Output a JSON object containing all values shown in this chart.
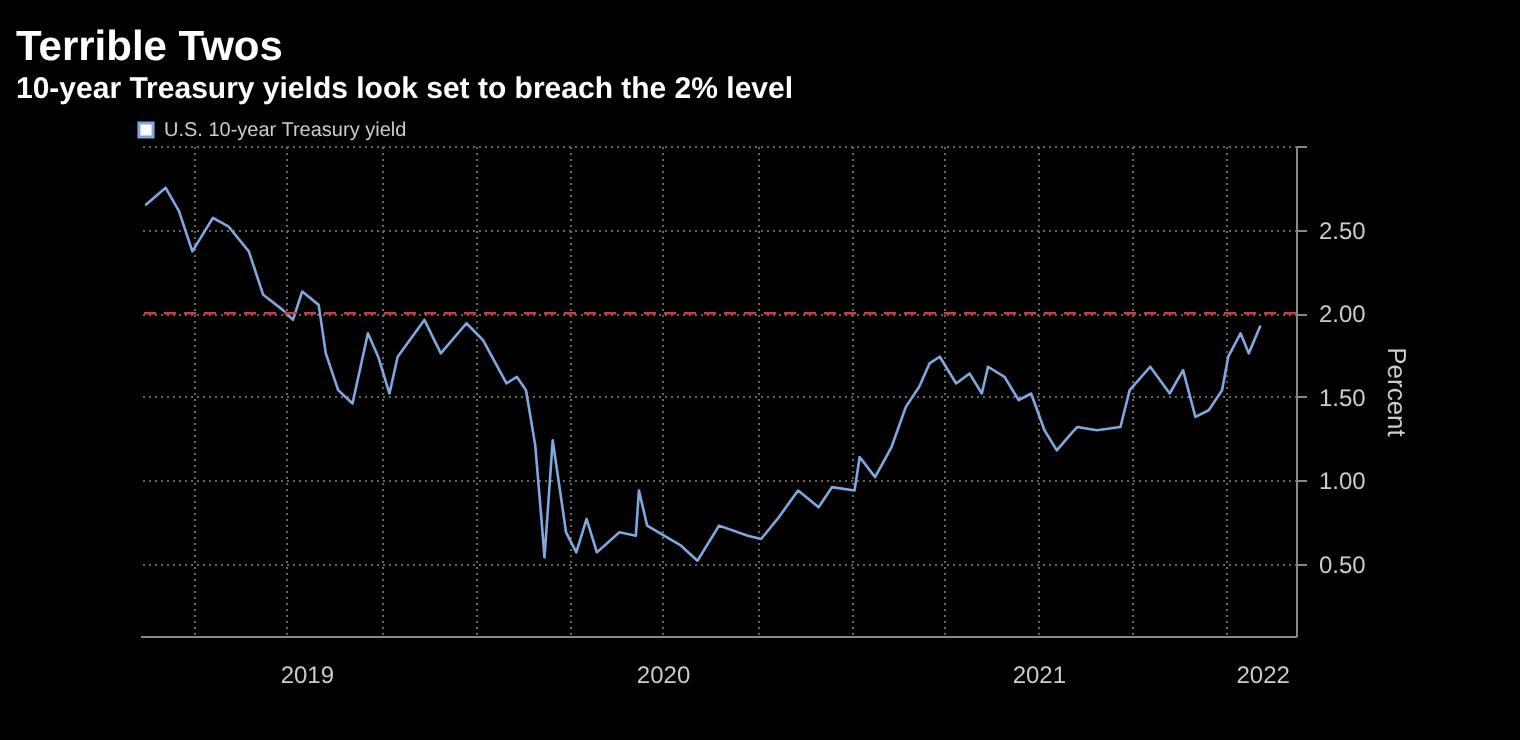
{
  "chart_data": {
    "type": "line",
    "title": "Terrible Twos",
    "subtitle": "10-year Treasury yields look set to breach the 2% level",
    "ylabel": "Percent",
    "x": [
      "2019-02-14",
      "2019-03-05",
      "2019-03-18",
      "2019-03-31",
      "2019-04-20",
      "2019-05-05",
      "2019-05-25",
      "2019-06-08",
      "2019-06-27",
      "2019-07-07",
      "2019-07-16",
      "2019-08-01",
      "2019-08-08",
      "2019-08-20",
      "2019-09-03",
      "2019-09-18",
      "2019-09-28",
      "2019-10-09",
      "2019-10-17",
      "2019-11-12",
      "2019-11-28",
      "2019-12-23",
      "2020-01-08",
      "2020-01-31",
      "2020-02-10",
      "2020-02-19",
      "2020-02-28",
      "2020-03-05",
      "2020-03-08",
      "2020-03-16",
      "2020-03-29",
      "2020-04-08",
      "2020-04-18",
      "2020-04-28",
      "2020-05-20",
      "2020-06-05",
      "2020-06-08",
      "2020-06-16",
      "2020-07-19",
      "2020-08-04",
      "2020-08-25",
      "2020-09-22",
      "2020-10-05",
      "2020-10-21",
      "2020-11-10",
      "2020-11-30",
      "2020-12-13",
      "2021-01-04",
      "2021-01-09",
      "2021-01-24",
      "2021-02-09",
      "2021-02-23",
      "2021-03-08",
      "2021-03-18",
      "2021-03-28",
      "2021-04-13",
      "2021-04-26",
      "2021-05-08",
      "2021-05-14",
      "2021-05-30",
      "2021-06-13",
      "2021-06-25",
      "2021-07-08",
      "2021-07-20",
      "2021-08-03",
      "2021-08-09",
      "2021-08-28",
      "2021-09-20",
      "2021-09-29",
      "2021-10-19",
      "2021-11-07",
      "2021-11-20",
      "2021-12-02",
      "2021-12-15",
      "2021-12-28",
      "2022-01-03",
      "2022-01-15",
      "2022-01-23",
      "2022-02-03"
    ],
    "series": [
      {
        "name": "U.S. 10-year Treasury yield",
        "color": "#7fa8e0",
        "values": [
          2.65,
          2.75,
          2.61,
          2.37,
          2.57,
          2.52,
          2.37,
          2.11,
          2.02,
          1.96,
          2.13,
          2.05,
          1.76,
          1.54,
          1.46,
          1.88,
          1.74,
          1.52,
          1.74,
          1.96,
          1.76,
          1.94,
          1.84,
          1.58,
          1.62,
          1.54,
          1.21,
          0.77,
          0.54,
          1.24,
          0.69,
          0.57,
          0.77,
          0.57,
          0.69,
          0.67,
          0.94,
          0.73,
          0.61,
          0.52,
          0.73,
          0.67,
          0.65,
          0.77,
          0.94,
          0.84,
          0.96,
          0.94,
          1.14,
          1.02,
          1.2,
          1.44,
          1.56,
          1.7,
          1.74,
          1.58,
          1.64,
          1.52,
          1.68,
          1.62,
          1.48,
          1.52,
          1.3,
          1.18,
          1.28,
          1.32,
          1.3,
          1.32,
          1.54,
          1.68,
          1.52,
          1.66,
          1.38,
          1.42,
          1.54,
          1.74,
          1.88,
          1.76,
          1.92
        ]
      }
    ],
    "xlim": [
      "2019-02-08",
      "2022-03-10"
    ],
    "xticks": [
      {
        "value": "2019-04-01",
        "label": null
      },
      {
        "value": "2019-07-01",
        "label": null
      },
      {
        "value": "2019-10-01",
        "label": null
      },
      {
        "value": "2020-01-01",
        "label": null
      },
      {
        "value": "2020-04-01",
        "label": null
      },
      {
        "value": "2020-07-01",
        "label": null
      },
      {
        "value": "2020-10-01",
        "label": null
      },
      {
        "value": "2021-01-01",
        "label": null
      },
      {
        "value": "2021-04-01",
        "label": null
      },
      {
        "value": "2021-07-01",
        "label": null
      },
      {
        "value": "2021-10-01",
        "label": null
      },
      {
        "value": "2022-01-01",
        "label": null
      },
      {
        "value": "2019-07-20",
        "label": "2019"
      },
      {
        "value": "2020-07-01",
        "label": "2020"
      },
      {
        "value": "2021-07-02",
        "label": "2021"
      },
      {
        "value": "2022-02-05",
        "label": "2022"
      }
    ],
    "ylim": [
      0.07,
      3.0
    ],
    "yticks": [
      {
        "value": 0.5,
        "label": "0.50"
      },
      {
        "value": 1,
        "label": "1.00"
      },
      {
        "value": 1.5,
        "label": "1.50"
      },
      {
        "value": 2,
        "label": "2.00"
      },
      {
        "value": 2.5,
        "label": "2.50"
      },
      {
        "value": 3,
        "label": null
      }
    ],
    "ref_lines": [
      {
        "axis": "y",
        "value": 2,
        "color": "#d13b3b",
        "line_style": "dashed"
      }
    ],
    "grid": true,
    "legend": "top left",
    "line_style": "solid",
    "marker": "none"
  }
}
